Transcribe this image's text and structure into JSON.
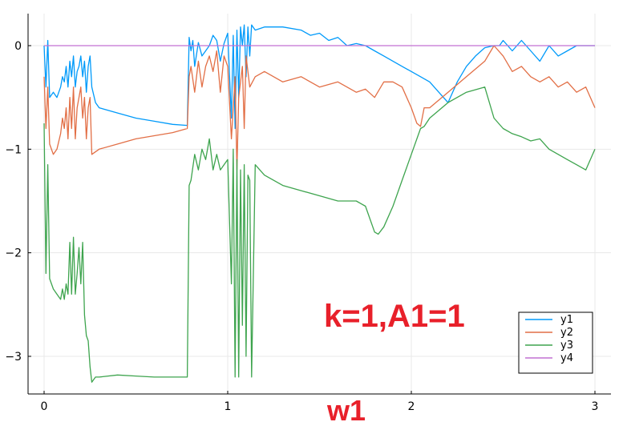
{
  "chart_data": {
    "type": "line",
    "xlim": [
      0,
      3
    ],
    "ylim": [
      -3.35,
      0.3
    ],
    "xticks": [
      0,
      1,
      2,
      3
    ],
    "xtick_labels": [
      "0",
      "1",
      "2",
      "3"
    ],
    "yticks": [
      0,
      -1,
      -2,
      -3
    ],
    "ytick_labels": [
      "0",
      "−1",
      "−2",
      "−3"
    ],
    "grid": true,
    "legend_position": "bottom-right",
    "annotation": "k=1,A1=1",
    "xlabel": "w1",
    "series": [
      {
        "name": "y1",
        "color": "#009AFA",
        "x": [
          0,
          0.01,
          0.02,
          0.03,
          0.05,
          0.07,
          0.09,
          0.1,
          0.11,
          0.12,
          0.13,
          0.14,
          0.15,
          0.16,
          0.17,
          0.18,
          0.19,
          0.2,
          0.21,
          0.22,
          0.23,
          0.24,
          0.25,
          0.26,
          0.28,
          0.3,
          0.4,
          0.5,
          0.6,
          0.7,
          0.78,
          0.79,
          0.8,
          0.81,
          0.82,
          0.84,
          0.86,
          0.88,
          0.9,
          0.92,
          0.94,
          0.96,
          0.98,
          1.0,
          1.02,
          1.03,
          1.04,
          1.05,
          1.06,
          1.07,
          1.08,
          1.09,
          1.1,
          1.11,
          1.12,
          1.13,
          1.15,
          1.2,
          1.3,
          1.4,
          1.45,
          1.5,
          1.55,
          1.6,
          1.65,
          1.7,
          1.75,
          1.8,
          1.85,
          1.9,
          1.95,
          2.0,
          2.05,
          2.1,
          2.15,
          2.2,
          2.25,
          2.3,
          2.35,
          2.4,
          2.45,
          2.48,
          2.5,
          2.55,
          2.6,
          2.65,
          2.7,
          2.75,
          2.8,
          2.85,
          2.9,
          2.95,
          3.0
        ],
        "values": [
          0,
          -0.4,
          0.05,
          -0.5,
          -0.45,
          -0.5,
          -0.4,
          -0.3,
          -0.35,
          -0.2,
          -0.4,
          -0.15,
          -0.3,
          -0.1,
          -0.4,
          -0.25,
          -0.2,
          -0.1,
          -0.3,
          -0.15,
          -0.45,
          -0.2,
          -0.1,
          -0.4,
          -0.55,
          -0.6,
          -0.65,
          -0.7,
          -0.73,
          -0.76,
          -0.77,
          0.08,
          -0.05,
          0.05,
          -0.2,
          0.03,
          -0.1,
          -0.05,
          0.0,
          0.1,
          0.05,
          -0.15,
          0.02,
          0.12,
          -0.7,
          0.1,
          -0.8,
          0.15,
          -0.5,
          0.18,
          0.0,
          0.2,
          -0.3,
          0.18,
          -0.1,
          0.2,
          0.15,
          0.18,
          0.18,
          0.15,
          0.1,
          0.12,
          0.05,
          0.08,
          0.0,
          0.02,
          0.0,
          -0.05,
          -0.1,
          -0.15,
          -0.2,
          -0.25,
          -0.3,
          -0.35,
          -0.45,
          -0.55,
          -0.35,
          -0.2,
          -0.1,
          -0.02,
          0.0,
          0.0,
          0.05,
          -0.05,
          0.05,
          -0.05,
          -0.15,
          0.0,
          -0.1,
          -0.05,
          0.0,
          0.0,
          0.0
        ]
      },
      {
        "name": "y2",
        "color": "#E26F46",
        "x": [
          0,
          0.01,
          0.02,
          0.03,
          0.05,
          0.07,
          0.09,
          0.1,
          0.11,
          0.12,
          0.13,
          0.14,
          0.15,
          0.16,
          0.17,
          0.18,
          0.19,
          0.2,
          0.21,
          0.22,
          0.23,
          0.24,
          0.25,
          0.26,
          0.3,
          0.4,
          0.5,
          0.6,
          0.7,
          0.78,
          0.79,
          0.8,
          0.82,
          0.84,
          0.86,
          0.88,
          0.9,
          0.92,
          0.94,
          0.96,
          0.98,
          1.0,
          1.02,
          1.04,
          1.05,
          1.06,
          1.08,
          1.09,
          1.1,
          1.12,
          1.15,
          1.2,
          1.3,
          1.4,
          1.5,
          1.6,
          1.7,
          1.75,
          1.8,
          1.85,
          1.9,
          1.95,
          2.0,
          2.03,
          2.05,
          2.07,
          2.1,
          2.2,
          2.3,
          2.4,
          2.45,
          2.5,
          2.55,
          2.6,
          2.65,
          2.7,
          2.75,
          2.8,
          2.85,
          2.9,
          2.95,
          3.0
        ],
        "values": [
          -0.3,
          -0.8,
          -0.4,
          -0.95,
          -1.05,
          -1.0,
          -0.85,
          -0.7,
          -0.8,
          -0.6,
          -0.9,
          -0.5,
          -0.8,
          -0.4,
          -0.9,
          -0.6,
          -0.5,
          -0.4,
          -0.7,
          -0.5,
          -0.9,
          -0.6,
          -0.5,
          -1.05,
          -1.0,
          -0.95,
          -0.9,
          -0.87,
          -0.84,
          -0.8,
          -0.3,
          -0.2,
          -0.45,
          -0.15,
          -0.4,
          -0.2,
          -0.1,
          -0.25,
          -0.05,
          -0.45,
          -0.1,
          -0.2,
          -0.9,
          -0.3,
          -1.2,
          -0.5,
          -0.2,
          -0.8,
          -0.1,
          -0.4,
          -0.3,
          -0.25,
          -0.35,
          -0.3,
          -0.4,
          -0.35,
          -0.45,
          -0.42,
          -0.5,
          -0.35,
          -0.35,
          -0.4,
          -0.6,
          -0.75,
          -0.78,
          -0.6,
          -0.6,
          -0.45,
          -0.3,
          -0.15,
          0.0,
          -0.1,
          -0.25,
          -0.2,
          -0.3,
          -0.35,
          -0.3,
          -0.4,
          -0.35,
          -0.45,
          -0.4,
          -0.6
        ]
      },
      {
        "name": "y3",
        "color": "#3EA44E",
        "x": [
          0,
          0.01,
          0.02,
          0.03,
          0.05,
          0.07,
          0.09,
          0.1,
          0.11,
          0.12,
          0.13,
          0.14,
          0.15,
          0.16,
          0.17,
          0.18,
          0.19,
          0.2,
          0.21,
          0.22,
          0.23,
          0.24,
          0.25,
          0.26,
          0.28,
          0.3,
          0.4,
          0.5,
          0.6,
          0.7,
          0.78,
          0.79,
          0.8,
          0.82,
          0.84,
          0.86,
          0.88,
          0.9,
          0.92,
          0.94,
          0.96,
          0.98,
          1.0,
          1.02,
          1.03,
          1.04,
          1.05,
          1.06,
          1.07,
          1.08,
          1.09,
          1.1,
          1.11,
          1.12,
          1.13,
          1.15,
          1.2,
          1.3,
          1.4,
          1.5,
          1.6,
          1.7,
          1.75,
          1.8,
          1.82,
          1.85,
          1.9,
          1.95,
          2.0,
          2.05,
          2.07,
          2.1,
          2.2,
          2.3,
          2.4,
          2.45,
          2.5,
          2.55,
          2.6,
          2.65,
          2.7,
          2.75,
          2.8,
          2.85,
          2.9,
          2.95,
          3.0
        ],
        "values": [
          -0.75,
          -2.2,
          -1.15,
          -2.25,
          -2.35,
          -2.4,
          -2.45,
          -2.35,
          -2.45,
          -2.3,
          -2.4,
          -1.9,
          -2.4,
          -1.85,
          -2.4,
          -2.2,
          -1.95,
          -2.3,
          -1.9,
          -2.6,
          -2.8,
          -2.85,
          -3.1,
          -3.25,
          -3.2,
          -3.2,
          -3.18,
          -3.19,
          -3.2,
          -3.2,
          -3.2,
          -1.35,
          -1.3,
          -1.05,
          -1.2,
          -1.0,
          -1.1,
          -0.9,
          -1.2,
          -1.05,
          -1.2,
          -1.15,
          -1.1,
          -2.3,
          -1.0,
          -3.2,
          -1.1,
          -3.2,
          -1.2,
          -2.7,
          -1.15,
          -3.0,
          -1.25,
          -1.3,
          -3.2,
          -1.15,
          -1.25,
          -1.35,
          -1.4,
          -1.45,
          -1.5,
          -1.5,
          -1.55,
          -1.8,
          -1.82,
          -1.75,
          -1.55,
          -1.3,
          -1.05,
          -0.8,
          -0.78,
          -0.7,
          -0.55,
          -0.45,
          -0.4,
          -0.7,
          -0.8,
          -0.85,
          -0.88,
          -0.92,
          -0.9,
          -1.0,
          -1.05,
          -1.1,
          -1.15,
          -1.2,
          -1.0
        ]
      },
      {
        "name": "y4",
        "color": "#C271D2",
        "x": [
          0,
          3
        ],
        "values": [
          0,
          0
        ]
      }
    ]
  }
}
